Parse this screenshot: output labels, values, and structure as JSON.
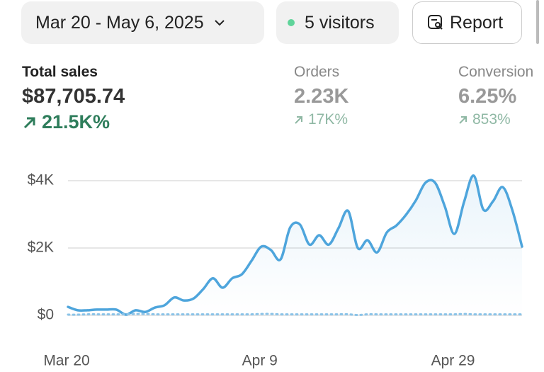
{
  "header": {
    "date_range": "Mar 20 - May 6, 2025",
    "visitors": "5 visitors",
    "report_button": "Report"
  },
  "metrics": [
    {
      "label": "Total sales",
      "value": "$87,705.74",
      "change": "21.5K%"
    },
    {
      "label": "Orders",
      "value": "2.23K",
      "change": "17K%"
    },
    {
      "label": "Conversion",
      "value": "6.25%",
      "change": "853%"
    }
  ],
  "chart_data": {
    "type": "line",
    "categories": [
      "Mar 20",
      null,
      null,
      null,
      null,
      null,
      null,
      null,
      null,
      null,
      null,
      null,
      null,
      null,
      null,
      null,
      null,
      null,
      null,
      null,
      "Apr 9",
      null,
      null,
      null,
      null,
      null,
      null,
      null,
      null,
      null,
      null,
      null,
      null,
      null,
      null,
      null,
      null,
      null,
      null,
      null,
      "Apr 29",
      null,
      null,
      null,
      null,
      null,
      null,
      null
    ],
    "series": [
      {
        "color": "#4ea5dc",
        "values": [
          250,
          150,
          150,
          170,
          170,
          170,
          20,
          150,
          100,
          230,
          300,
          530,
          440,
          500,
          780,
          1100,
          820,
          1100,
          1220,
          1620,
          2040,
          1940,
          1660,
          2610,
          2700,
          2100,
          2380,
          2100,
          2590,
          3100,
          2000,
          2230,
          1870,
          2460,
          2670,
          2990,
          3410,
          3940,
          3940,
          3240,
          2420,
          3370,
          4150,
          3140,
          3390,
          3810,
          3120,
          2040
        ]
      },
      {
        "color": "#8cc4e8",
        "dash": true,
        "values": [
          20,
          20,
          30,
          30,
          30,
          30,
          30,
          40,
          40,
          30,
          30,
          30,
          30,
          30,
          30,
          30,
          30,
          30,
          30,
          30,
          40,
          40,
          30,
          30,
          30,
          30,
          30,
          30,
          30,
          30,
          10,
          30,
          30,
          30,
          30,
          30,
          30,
          30,
          30,
          30,
          30,
          40,
          30,
          30,
          30,
          30,
          30,
          30
        ]
      }
    ],
    "ylim": [
      0,
      4400
    ],
    "yticks": [
      {
        "value": 0,
        "label": "$0"
      },
      {
        "value": 2000,
        "label": "$2K"
      },
      {
        "value": 4000,
        "label": "$4K"
      }
    ],
    "grid": true
  }
}
